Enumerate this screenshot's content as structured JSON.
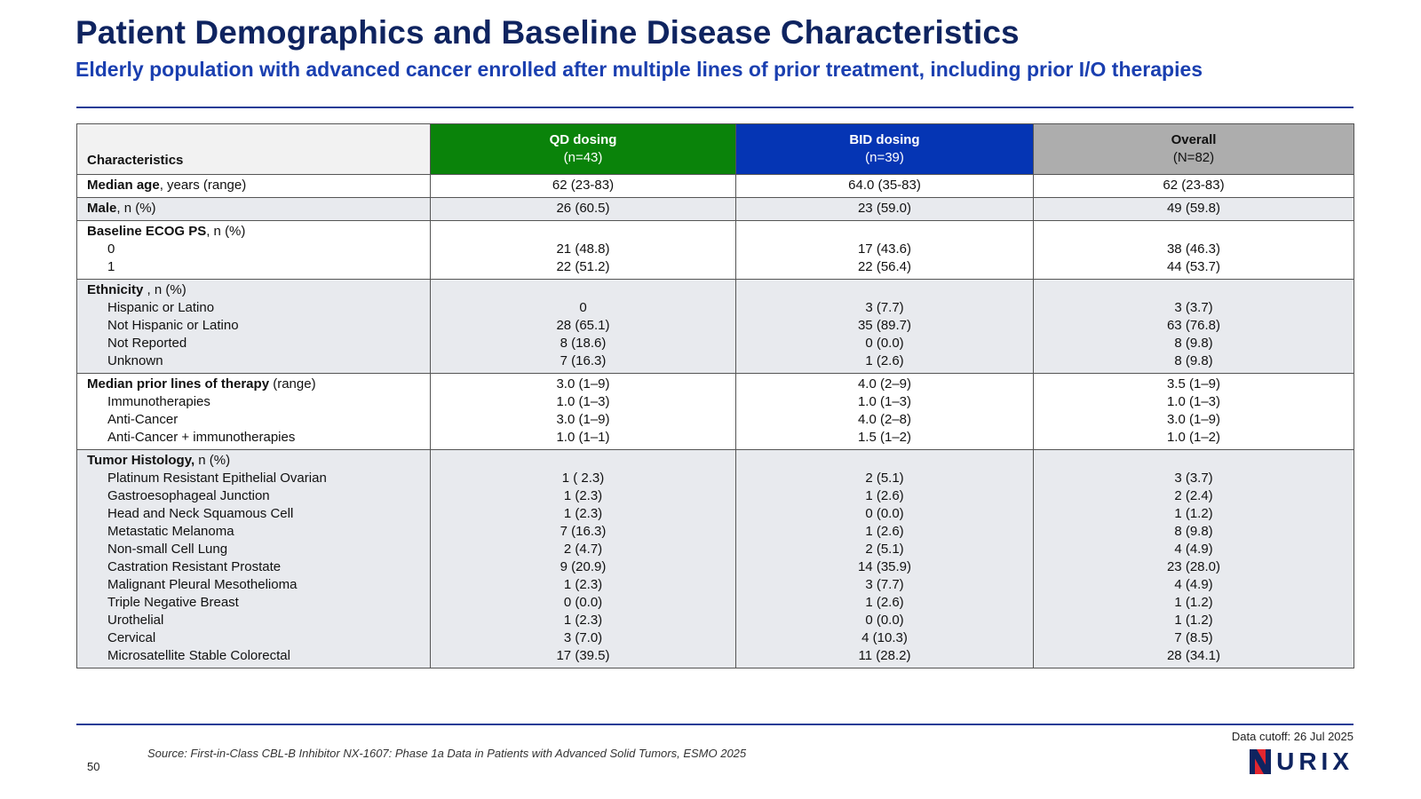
{
  "header": {
    "title": "Patient Demographics and Baseline Disease Characteristics",
    "subtitle": "Elderly population with advanced cancer enrolled after multiple lines of prior treatment, including prior I/O therapies"
  },
  "table": {
    "columns": {
      "characteristics": "Characteristics",
      "qd": {
        "label": "QD dosing",
        "n": "(n=43)"
      },
      "bid": {
        "label": "BID dosing",
        "n": "(n=39)"
      },
      "overall": {
        "label": "Overall",
        "n": "(N=82)"
      }
    },
    "age": {
      "label_bold": "Median age",
      "label_rest": ", years (range)",
      "qd": "62 (23-83)",
      "bid": "64.0 (35-83)",
      "overall": "62 (23-83)"
    },
    "male": {
      "label_bold": "Male",
      "label_rest": ", n (%)",
      "qd": "26 (60.5)",
      "bid": "23 (59.0)",
      "overall": "49 (59.8)"
    },
    "ecog": {
      "label_bold": "Baseline ECOG PS",
      "label_rest": ", n (%)",
      "rows": [
        {
          "label": "0",
          "qd": "21 (48.8)",
          "bid": "17 (43.6)",
          "overall": "38 (46.3)"
        },
        {
          "label": "1",
          "qd": "22 (51.2)",
          "bid": "22 (56.4)",
          "overall": "44 (53.7)"
        }
      ]
    },
    "ethnicity": {
      "label_bold": "Ethnicity",
      "label_rest": " , n (%)",
      "rows": [
        {
          "label": "Hispanic or Latino",
          "qd": "0",
          "bid": "3 (7.7)",
          "overall": "3 (3.7)"
        },
        {
          "label": "Not Hispanic or Latino",
          "qd": "28 (65.1)",
          "bid": "35 (89.7)",
          "overall": "63 (76.8)"
        },
        {
          "label": "Not Reported",
          "qd": "8 (18.6)",
          "bid": "0 (0.0)",
          "overall": "8 (9.8)"
        },
        {
          "label": "Unknown",
          "qd": "7 (16.3)",
          "bid": "1 (2.6)",
          "overall": "8 (9.8)"
        }
      ]
    },
    "prior": {
      "label_bold": "Median prior lines of therapy",
      "label_rest": " (range)",
      "qd": "3.0 (1–9)",
      "bid": "4.0 (2–9)",
      "overall": "3.5 (1–9)",
      "rows": [
        {
          "label": "Immunotherapies",
          "qd": "1.0 (1–3)",
          "bid": "1.0 (1–3)",
          "overall": "1.0 (1–3)"
        },
        {
          "label": "Anti-Cancer",
          "qd": "3.0 (1–9)",
          "bid": "4.0 (2–8)",
          "overall": "3.0 (1–9)"
        },
        {
          "label": "Anti-Cancer + immunotherapies",
          "qd": "1.0 (1–1)",
          "bid": "1.5 (1–2)",
          "overall": "1.0 (1–2)"
        }
      ]
    },
    "histology": {
      "label_bold": "Tumor Histology,",
      "label_rest": " n (%)",
      "rows": [
        {
          "label": "Platinum Resistant Epithelial Ovarian",
          "qd": "1 ( 2.3)",
          "bid": "2 (5.1)",
          "overall": "3 (3.7)"
        },
        {
          "label": "Gastroesophageal Junction",
          "qd": "1 (2.3)",
          "bid": "1 (2.6)",
          "overall": "2 (2.4)"
        },
        {
          "label": "Head and Neck Squamous Cell",
          "qd": "1 (2.3)",
          "bid": "0 (0.0)",
          "overall": "1 (1.2)"
        },
        {
          "label": "Metastatic Melanoma",
          "qd": "7 (16.3)",
          "bid": "1 (2.6)",
          "overall": "8 (9.8)"
        },
        {
          "label": "Non-small Cell Lung",
          "qd": "2 (4.7)",
          "bid": "2 (5.1)",
          "overall": "4 (4.9)"
        },
        {
          "label": "Castration Resistant Prostate",
          "qd": "9 (20.9)",
          "bid": "14 (35.9)",
          "overall": "23 (28.0)"
        },
        {
          "label": "Malignant Pleural Mesothelioma",
          "qd": "1 (2.3)",
          "bid": "3 (7.7)",
          "overall": "4 (4.9)"
        },
        {
          "label": "Triple Negative Breast",
          "qd": "0 (0.0)",
          "bid": "1 (2.6)",
          "overall": "1 (1.2)"
        },
        {
          "label": "Urothelial",
          "qd": "1 (2.3)",
          "bid": "0 (0.0)",
          "overall": "1 (1.2)"
        },
        {
          "label": "Cervical",
          "qd": "3 (7.0)",
          "bid": "4 (10.3)",
          "overall": "7 (8.5)"
        },
        {
          "label": "Microsatellite Stable Colorectal",
          "qd": "17 (39.5)",
          "bid": "11 (28.2)",
          "overall": "28 (34.1)"
        }
      ]
    }
  },
  "footer": {
    "data_cutoff": "Data cutoff: 26 Jul 2025",
    "source": "Source: First-in-Class CBL-B Inhibitor NX-1607: Phase 1a Data in Patients with Advanced Solid Tumors, ESMO 2025",
    "page_number": "50",
    "logo_text": "URIX"
  },
  "colors": {
    "title": "#0f2460",
    "subtitle": "#1a3fb0",
    "qd_header": "#0a830a",
    "bid_header": "#0535b4",
    "overall_header": "#adadad",
    "logo_red": "#e3262f",
    "logo_navy": "#0f2460"
  }
}
